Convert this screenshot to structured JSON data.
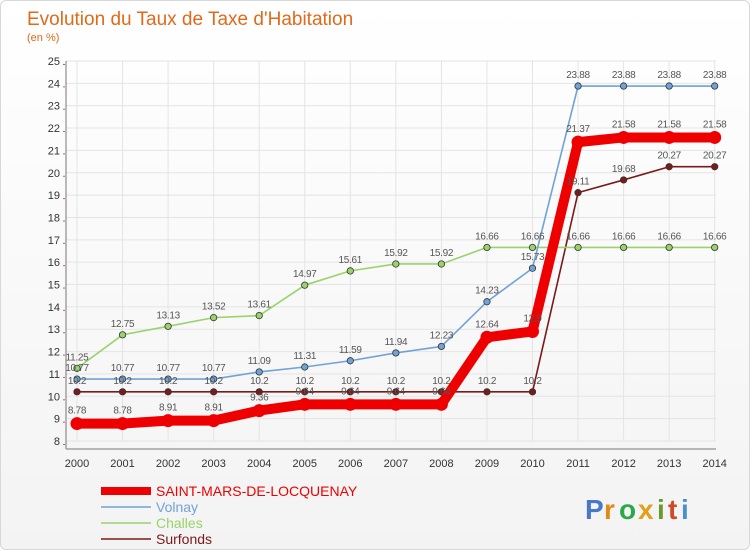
{
  "chart_data": {
    "type": "line",
    "title": "Evolution du Taux de Taxe d'Habitation",
    "subtitle": "(en %)",
    "x": [
      2000,
      2001,
      2002,
      2003,
      2004,
      2005,
      2006,
      2007,
      2008,
      2009,
      2010,
      2011,
      2012,
      2013,
      2014
    ],
    "ylim": [
      8,
      25
    ],
    "yticks": [
      8,
      9,
      10,
      11,
      12,
      13,
      14,
      15,
      16,
      17,
      18,
      19,
      20,
      21,
      22,
      23,
      24,
      25
    ],
    "grid": true,
    "legend_position": "bottom-left",
    "series": [
      {
        "name": "Surfonds",
        "color": "#7a1a1a",
        "values": [
          10.2,
          10.2,
          10.2,
          10.2,
          10.2,
          10.2,
          10.2,
          10.2,
          10.2,
          10.2,
          10.2,
          19.11,
          19.68,
          20.27,
          20.27
        ],
        "labels": [
          "10.2",
          "10.2",
          "10.2",
          "10.2",
          "10.2",
          "10.2",
          "10.2",
          "10.2",
          "10.2",
          "10.2",
          "10.2",
          "19.11",
          "19.68",
          "20.27",
          "20.27"
        ]
      },
      {
        "name": "Challes",
        "color": "#99d36a",
        "values": [
          11.25,
          12.75,
          13.13,
          13.52,
          13.61,
          14.97,
          15.61,
          15.92,
          15.92,
          16.66,
          16.66,
          16.66,
          16.66,
          16.66,
          16.66
        ],
        "labels": [
          "11.25",
          "12.75",
          "13.13",
          "13.52",
          "13.61",
          "14.97",
          "15.61",
          "15.92",
          "15.92",
          "16.66",
          "16.66",
          "16.66",
          "16.66",
          "16.66",
          "16.66"
        ]
      },
      {
        "name": "Volnay",
        "color": "#6fa3d6",
        "values": [
          10.77,
          10.77,
          10.77,
          10.77,
          11.09,
          11.31,
          11.59,
          11.94,
          12.23,
          14.23,
          15.73,
          23.88,
          23.88,
          23.88,
          23.88
        ],
        "labels": [
          "10.77",
          "10.77",
          "10.77",
          "10.77",
          "11.09",
          "11.31",
          "11.59",
          "11.94",
          "12.23",
          "14.23",
          "15.73",
          "23.88",
          "23.88",
          "23.88",
          "23.88"
        ]
      },
      {
        "name": "SAINT-MARS-DE-LOCQUENAY",
        "color": "#ee0000",
        "values": [
          8.78,
          8.78,
          8.91,
          8.91,
          9.36,
          9.64,
          9.64,
          9.64,
          9.64,
          12.64,
          12.9,
          21.37,
          21.58,
          21.58,
          21.58
        ],
        "labels": [
          "8.78",
          "8.78",
          "8.91",
          "8.91",
          "9.36",
          "9.64",
          "9.64",
          "9.64",
          "9.64",
          "12.64",
          "12.9",
          "21.37",
          "21.58",
          "21.58",
          "21.58"
        ]
      }
    ]
  },
  "legend": {
    "items": [
      {
        "label": "SAINT-MARS-DE-LOCQUENAY",
        "color": "#ee0000"
      },
      {
        "label": "Volnay",
        "color": "#6fa3d6"
      },
      {
        "label": "Challes",
        "color": "#99d36a"
      },
      {
        "label": "Surfonds",
        "color": "#7a1a1a"
      }
    ]
  },
  "logo": {
    "letters": [
      "P",
      "r",
      "o",
      "x",
      "i",
      "t",
      "i"
    ],
    "colors": [
      "#4a78c8",
      "#e08a1a",
      "#2aa84a",
      "#e0a01a",
      "#6a9a2a",
      "#d04a2a",
      "#4a90d0"
    ]
  }
}
